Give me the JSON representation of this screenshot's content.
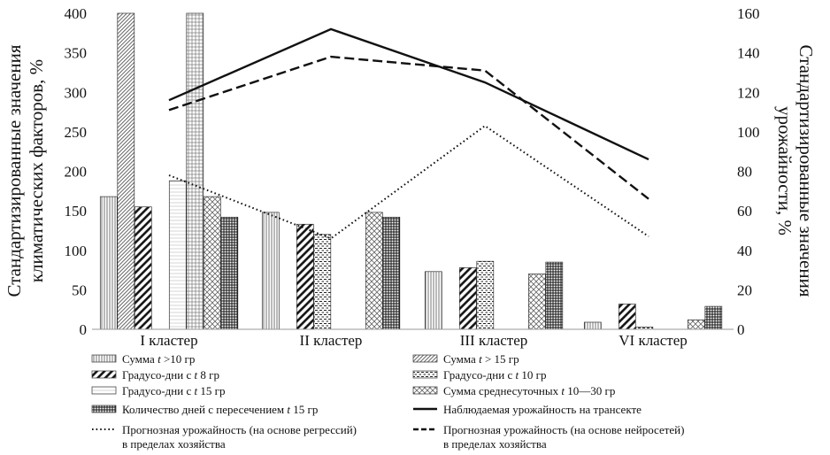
{
  "chart_data": {
    "type": "bar",
    "categories": [
      "I кластер",
      "II кластер",
      "III кластер",
      "VI кластер"
    ],
    "y_left": {
      "label_lines": [
        "Стандартизированные значения",
        "климатических факторов, %"
      ],
      "ticks": [
        "0",
        "50",
        "100",
        "150",
        "200",
        "250",
        "300",
        "350",
        "400"
      ],
      "range": [
        0,
        400
      ]
    },
    "y_right": {
      "label_lines": [
        "Стандартизированные значения",
        "урожайности, %"
      ],
      "ticks": [
        "0",
        "20",
        "40",
        "60",
        "80",
        "100",
        "120",
        "140",
        "160"
      ],
      "range": [
        0,
        160
      ]
    },
    "grid": false,
    "legend_position": "bottom",
    "series": [
      {
        "id": "s1",
        "name": "Сумма t >10 гр",
        "legend_parts": [
          {
            "t": "Сумма "
          },
          {
            "t": "t",
            "i": true
          },
          {
            "t": " >10 гр"
          }
        ],
        "kind": "bar",
        "axis": "left",
        "pattern": "vlines",
        "values": [
          168,
          148,
          73,
          9
        ]
      },
      {
        "id": "s2",
        "name": "Сумма t > 15 гр",
        "legend_parts": [
          {
            "t": "Сумма "
          },
          {
            "t": "t",
            "i": true
          },
          {
            "t": " > 15 гр"
          }
        ],
        "kind": "bar",
        "axis": "left",
        "pattern": "thindiag",
        "values": [
          400,
          0,
          0,
          0
        ]
      },
      {
        "id": "s3",
        "name": "Градусо-дни с t 8 гр",
        "legend_parts": [
          {
            "t": "Градусо-дни с "
          },
          {
            "t": "t",
            "i": true
          },
          {
            "t": " 8 гр"
          }
        ],
        "kind": "bar",
        "axis": "left",
        "pattern": "thickdiag",
        "values": [
          155,
          133,
          78,
          32
        ]
      },
      {
        "id": "s4",
        "name": "Градусо-дни с t 10 гр",
        "legend_parts": [
          {
            "t": "Градусо-дни с "
          },
          {
            "t": "t",
            "i": true
          },
          {
            "t": " 10 гр"
          }
        ],
        "kind": "bar",
        "axis": "left",
        "pattern": "dashes",
        "values": [
          0,
          120,
          86,
          3
        ]
      },
      {
        "id": "s5",
        "name": "Градусо-дни с t 15 гр",
        "legend_parts": [
          {
            "t": "Градусо-дни с "
          },
          {
            "t": "t",
            "i": true
          },
          {
            "t": " 15 гр"
          }
        ],
        "kind": "bar",
        "axis": "left",
        "pattern": "hlines",
        "values": [
          188,
          0,
          0,
          0
        ]
      },
      {
        "id": "s5b",
        "name": "",
        "legend_parts": [],
        "kind": "bar",
        "axis": "left",
        "pattern": "grid",
        "values": [
          400,
          0,
          0,
          0
        ]
      },
      {
        "id": "s6",
        "name": "Сумма среднесуточных t 10—30 гр",
        "legend_parts": [
          {
            "t": "Сумма среднесуточных "
          },
          {
            "t": "t",
            "i": true
          },
          {
            "t": " 10—30 гр"
          }
        ],
        "kind": "bar",
        "axis": "left",
        "pattern": "cross",
        "values": [
          168,
          148,
          70,
          12
        ]
      },
      {
        "id": "s7",
        "name": "Количество дней с пересечением t 15 гр",
        "legend_parts": [
          {
            "t": "Количество дней с пересечением "
          },
          {
            "t": "t",
            "i": true
          },
          {
            "t": " 15 гр"
          }
        ],
        "kind": "bar",
        "axis": "left",
        "pattern": "brick",
        "values": [
          142,
          142,
          85,
          29
        ]
      },
      {
        "id": "l1",
        "name": "Наблюдаемая урожайность на трансекте",
        "legend_parts": [
          {
            "t": "Наблюдаемая урожайность на трансекте"
          }
        ],
        "kind": "line",
        "axis": "right",
        "dash": "solid",
        "values": [
          116,
          152,
          125,
          86
        ]
      },
      {
        "id": "l2",
        "name": "Прогнозная урожайность (на основе регрессий) в пределах хозяйства",
        "legend_parts": [
          {
            "t": "Прогнозная урожайность (на основе регрессий)"
          }
        ],
        "legend_parts_line2": "в пределах хозяйства",
        "kind": "line",
        "axis": "right",
        "dash": "dotted",
        "values": [
          78,
          46,
          103,
          47
        ]
      },
      {
        "id": "l3",
        "name": "Прогнозная урожайность (на основе нейросетей) в пределах хозяйства",
        "legend_parts": [
          {
            "t": "Прогнозная урожайность (на основе нейросетей)"
          }
        ],
        "legend_parts_line2": "в пределах хозяйства",
        "kind": "line",
        "axis": "right",
        "dash": "dashed",
        "values": [
          111,
          138,
          131,
          66
        ]
      }
    ]
  }
}
